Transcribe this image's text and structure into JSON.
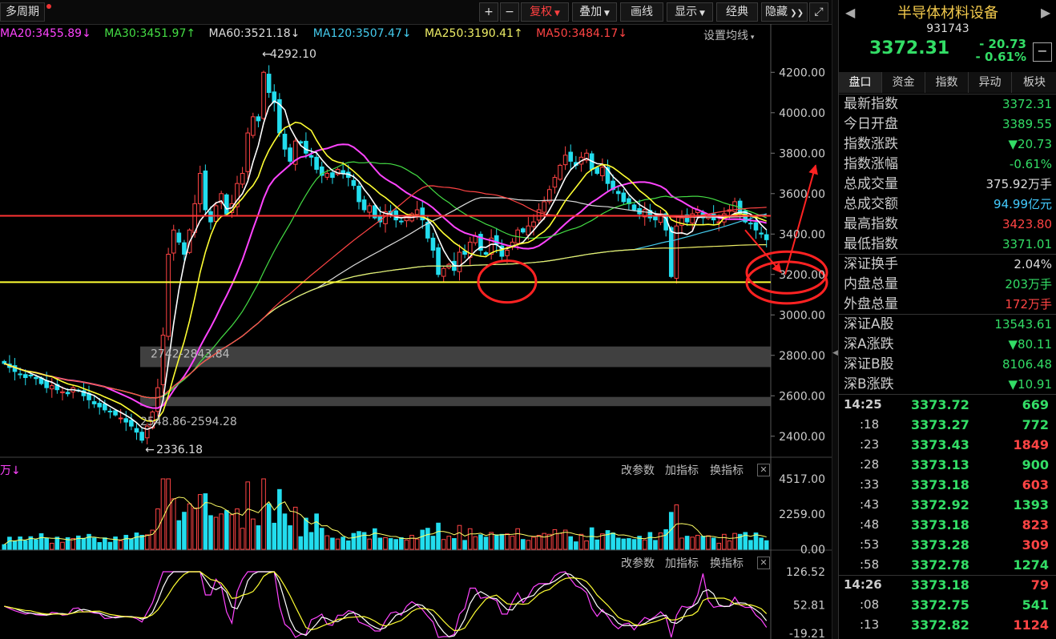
{
  "toolbar": {
    "period_label": "多周期",
    "buttons": [
      "+",
      "−",
      "复权",
      "叠加",
      "画线",
      "显示",
      "经典",
      "隐藏"
    ],
    "fullscreen_icon": "fullscreen-icon"
  },
  "ma_legend": [
    {
      "text": "MA20:3455.89↓",
      "color": "#ff44ff"
    },
    {
      "text": "MA30:3451.97↑",
      "color": "#44dd44"
    },
    {
      "text": "MA60:3521.18↓",
      "color": "#dddddd"
    },
    {
      "text": "MA120:3507.47↓",
      "color": "#44ccee"
    },
    {
      "text": "MA250:3190.41↑",
      "color": "#eeee66"
    },
    {
      "text": "MA50:3484.17↓",
      "color": "#ff4444"
    }
  ],
  "ma_setting_label": "设置均线",
  "volume_label": "万↓",
  "panel_tools": [
    "改参数",
    "加指标",
    "换指标"
  ],
  "chart_data": {
    "type": "candlestick",
    "price_axis": {
      "ticks": [
        "4200.00",
        "4000.00",
        "3800.00",
        "3600.00",
        "3400.00",
        "3200.00",
        "3000.00",
        "2800.00",
        "2600.00",
        "2400.00"
      ],
      "ylim": [
        2300,
        4320
      ]
    },
    "volume_axis": {
      "ticks": [
        "4517.00",
        "2259.00",
        "0.00"
      ],
      "ylim": [
        0,
        4517
      ]
    },
    "indicator_axis": {
      "ticks": [
        "126.52",
        "52.81",
        "-19.21"
      ],
      "ylim": [
        -19.21,
        126.52
      ]
    },
    "annotations": {
      "high": "4292.10",
      "low": "2336.18",
      "gap1": "2742-2843.84",
      "gap2": "2548.86-2594.28"
    },
    "gap_zones": [
      [
        2742,
        2843.84
      ],
      [
        2548.86,
        2594.28
      ]
    ],
    "support_line": 3162,
    "resistance_line": 3490,
    "circles": [
      {
        "x": 95,
        "y": 3165
      },
      {
        "x": 153,
        "y": 3160
      },
      {
        "x": 190,
        "y": 3210
      }
    ],
    "close": [
      2760,
      2740,
      2720,
      2705,
      2690,
      2700,
      2685,
      2660,
      2640,
      2650,
      2630,
      2620,
      2610,
      2640,
      2625,
      2600,
      2580,
      2560,
      2545,
      2530,
      2520,
      2505,
      2490,
      2470,
      2450,
      2420,
      2380,
      2450,
      2520,
      2640,
      2900,
      3300,
      3420,
      3360,
      3300,
      3420,
      3550,
      3700,
      3520,
      3460,
      3540,
      3600,
      3500,
      3550,
      3650,
      3700,
      3900,
      3980,
      3960,
      4200,
      4100,
      4050,
      3900,
      3820,
      3760,
      3860,
      3850,
      3800,
      3780,
      3720,
      3690,
      3700,
      3680,
      3720,
      3700,
      3680,
      3640,
      3560,
      3520,
      3540,
      3480,
      3460,
      3510,
      3500,
      3470,
      3460,
      3480,
      3500,
      3520,
      3470,
      3380,
      3320,
      3200,
      3230,
      3250,
      3220,
      3310,
      3300,
      3360,
      3390,
      3320,
      3300,
      3380,
      3350,
      3290,
      3320,
      3360,
      3420,
      3410,
      3440,
      3460,
      3520,
      3560,
      3620,
      3680,
      3740,
      3790,
      3760,
      3740,
      3780,
      3800,
      3720,
      3700,
      3730,
      3650,
      3620,
      3600,
      3560,
      3550,
      3520,
      3500,
      3520,
      3480,
      3470,
      3500,
      3420,
      3190,
      3440,
      3480,
      3460,
      3500,
      3520,
      3480,
      3490,
      3470,
      3460,
      3500,
      3520,
      3560,
      3500,
      3460,
      3450,
      3420,
      3400,
      3372
    ],
    "ma_series": [
      {
        "name": "MA20",
        "color": "#ff44ff"
      },
      {
        "name": "MA30",
        "color": "#44dd44"
      },
      {
        "name": "MA60",
        "color": "#dddddd"
      },
      {
        "name": "MA120",
        "color": "#44ccee"
      },
      {
        "name": "MA250",
        "color": "#eeee66"
      },
      {
        "name": "MA50",
        "color": "#ff4444"
      }
    ]
  },
  "right_panel": {
    "title": "半导体材料设备",
    "code": "931743",
    "price": "3372.31",
    "change": "- 20.73",
    "change_pct": "- 0.61%",
    "tabs": [
      "盘口",
      "资金",
      "指数",
      "异动",
      "板块"
    ],
    "stats": [
      {
        "label": "最新指数",
        "value": "3372.31",
        "color": "#33dd66"
      },
      {
        "label": "今日开盘",
        "value": "3389.55",
        "color": "#33dd66"
      },
      {
        "label": "指数涨跌",
        "value": "▼20.73",
        "color": "#33dd66"
      },
      {
        "label": "指数涨幅",
        "value": "-0.61%",
        "color": "#33dd66"
      },
      {
        "label": "总成交量",
        "value": "375.92万手",
        "color": "#dddddd"
      },
      {
        "label": "总成交额",
        "value": "94.99亿元",
        "color": "#44ccff"
      },
      {
        "label": "最高指数",
        "value": "3423.80",
        "color": "#ff4444"
      },
      {
        "label": "最低指数",
        "value": "3371.01",
        "color": "#33dd66"
      },
      {
        "label": "深证换手",
        "value": "2.04%",
        "color": "#dddddd"
      },
      {
        "label": "内盘总量",
        "value": "203万手",
        "color": "#33dd66"
      },
      {
        "label": "外盘总量",
        "value": "172万手",
        "color": "#ff4444"
      },
      {
        "label": "深证A股",
        "value": "13543.61",
        "color": "#33dd66"
      },
      {
        "label": "深A涨跌",
        "value": "▼80.11",
        "color": "#33dd66"
      },
      {
        "label": "深证B股",
        "value": "8106.48",
        "color": "#33dd66"
      },
      {
        "label": "深B涨跌",
        "value": "▼10.91",
        "color": "#33dd66"
      }
    ],
    "ticks": [
      {
        "time": "14:25",
        "price": "3373.72",
        "vol": "669",
        "vcolor": "#33dd66"
      },
      {
        "time": ":18",
        "price": "3373.27",
        "vol": "772",
        "vcolor": "#33dd66"
      },
      {
        "time": ":23",
        "price": "3373.43",
        "vol": "1849",
        "vcolor": "#ff4444"
      },
      {
        "time": ":28",
        "price": "3373.13",
        "vol": "900",
        "vcolor": "#33dd66"
      },
      {
        "time": ":33",
        "price": "3373.18",
        "vol": "603",
        "vcolor": "#ff4444"
      },
      {
        "time": ":43",
        "price": "3372.92",
        "vol": "1393",
        "vcolor": "#33dd66"
      },
      {
        "time": ":48",
        "price": "3373.18",
        "vol": "823",
        "vcolor": "#ff4444"
      },
      {
        "time": ":53",
        "price": "3373.28",
        "vol": "309",
        "vcolor": "#ff4444"
      },
      {
        "time": ":58",
        "price": "3372.78",
        "vol": "1274",
        "vcolor": "#33dd66"
      },
      {
        "time": "14:26",
        "price": "3373.18",
        "vol": "79",
        "vcolor": "#ff4444"
      },
      {
        "time": ":08",
        "price": "3372.75",
        "vol": "541",
        "vcolor": "#33dd66"
      },
      {
        "time": ":13",
        "price": "3372.82",
        "vol": "1124",
        "vcolor": "#ff4444"
      }
    ]
  }
}
